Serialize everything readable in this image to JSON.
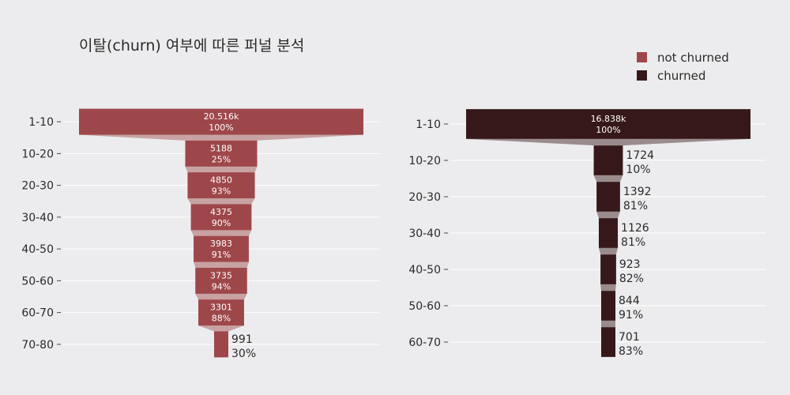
{
  "title": "이탈(churn) 여부에 따른 퍼널 분석",
  "legend": [
    {
      "label": "not churned",
      "color": "#9e474a"
    },
    {
      "label": "churned",
      "color": "#37181a"
    }
  ],
  "connector_colors": {
    "not churned": "#c8a2a3",
    "churned": "#9a8c8d"
  },
  "chart_data": [
    {
      "type": "funnel",
      "series": "not churned",
      "categories": [
        "1-10",
        "10-20",
        "20-30",
        "30-40",
        "40-50",
        "50-60",
        "60-70",
        "70-80"
      ],
      "values": [
        20516,
        5188,
        4850,
        4375,
        3983,
        3735,
        3301,
        991
      ],
      "value_labels": [
        "20.516k",
        "5188",
        "4850",
        "4375",
        "3983",
        "3735",
        "3301",
        "991"
      ],
      "percent_labels": [
        "100%",
        "25%",
        "93%",
        "90%",
        "91%",
        "94%",
        "88%",
        "30%"
      ]
    },
    {
      "type": "funnel",
      "series": "churned",
      "categories": [
        "1-10",
        "10-20",
        "20-30",
        "30-40",
        "40-50",
        "50-60",
        "60-70"
      ],
      "values": [
        16838,
        1724,
        1392,
        1126,
        923,
        844,
        701
      ],
      "value_labels": [
        "16.838k",
        "1724",
        "1392",
        "1126",
        "923",
        "844",
        "701"
      ],
      "percent_labels": [
        "100%",
        "10%",
        "81%",
        "81%",
        "82%",
        "91%",
        "83%"
      ]
    }
  ]
}
